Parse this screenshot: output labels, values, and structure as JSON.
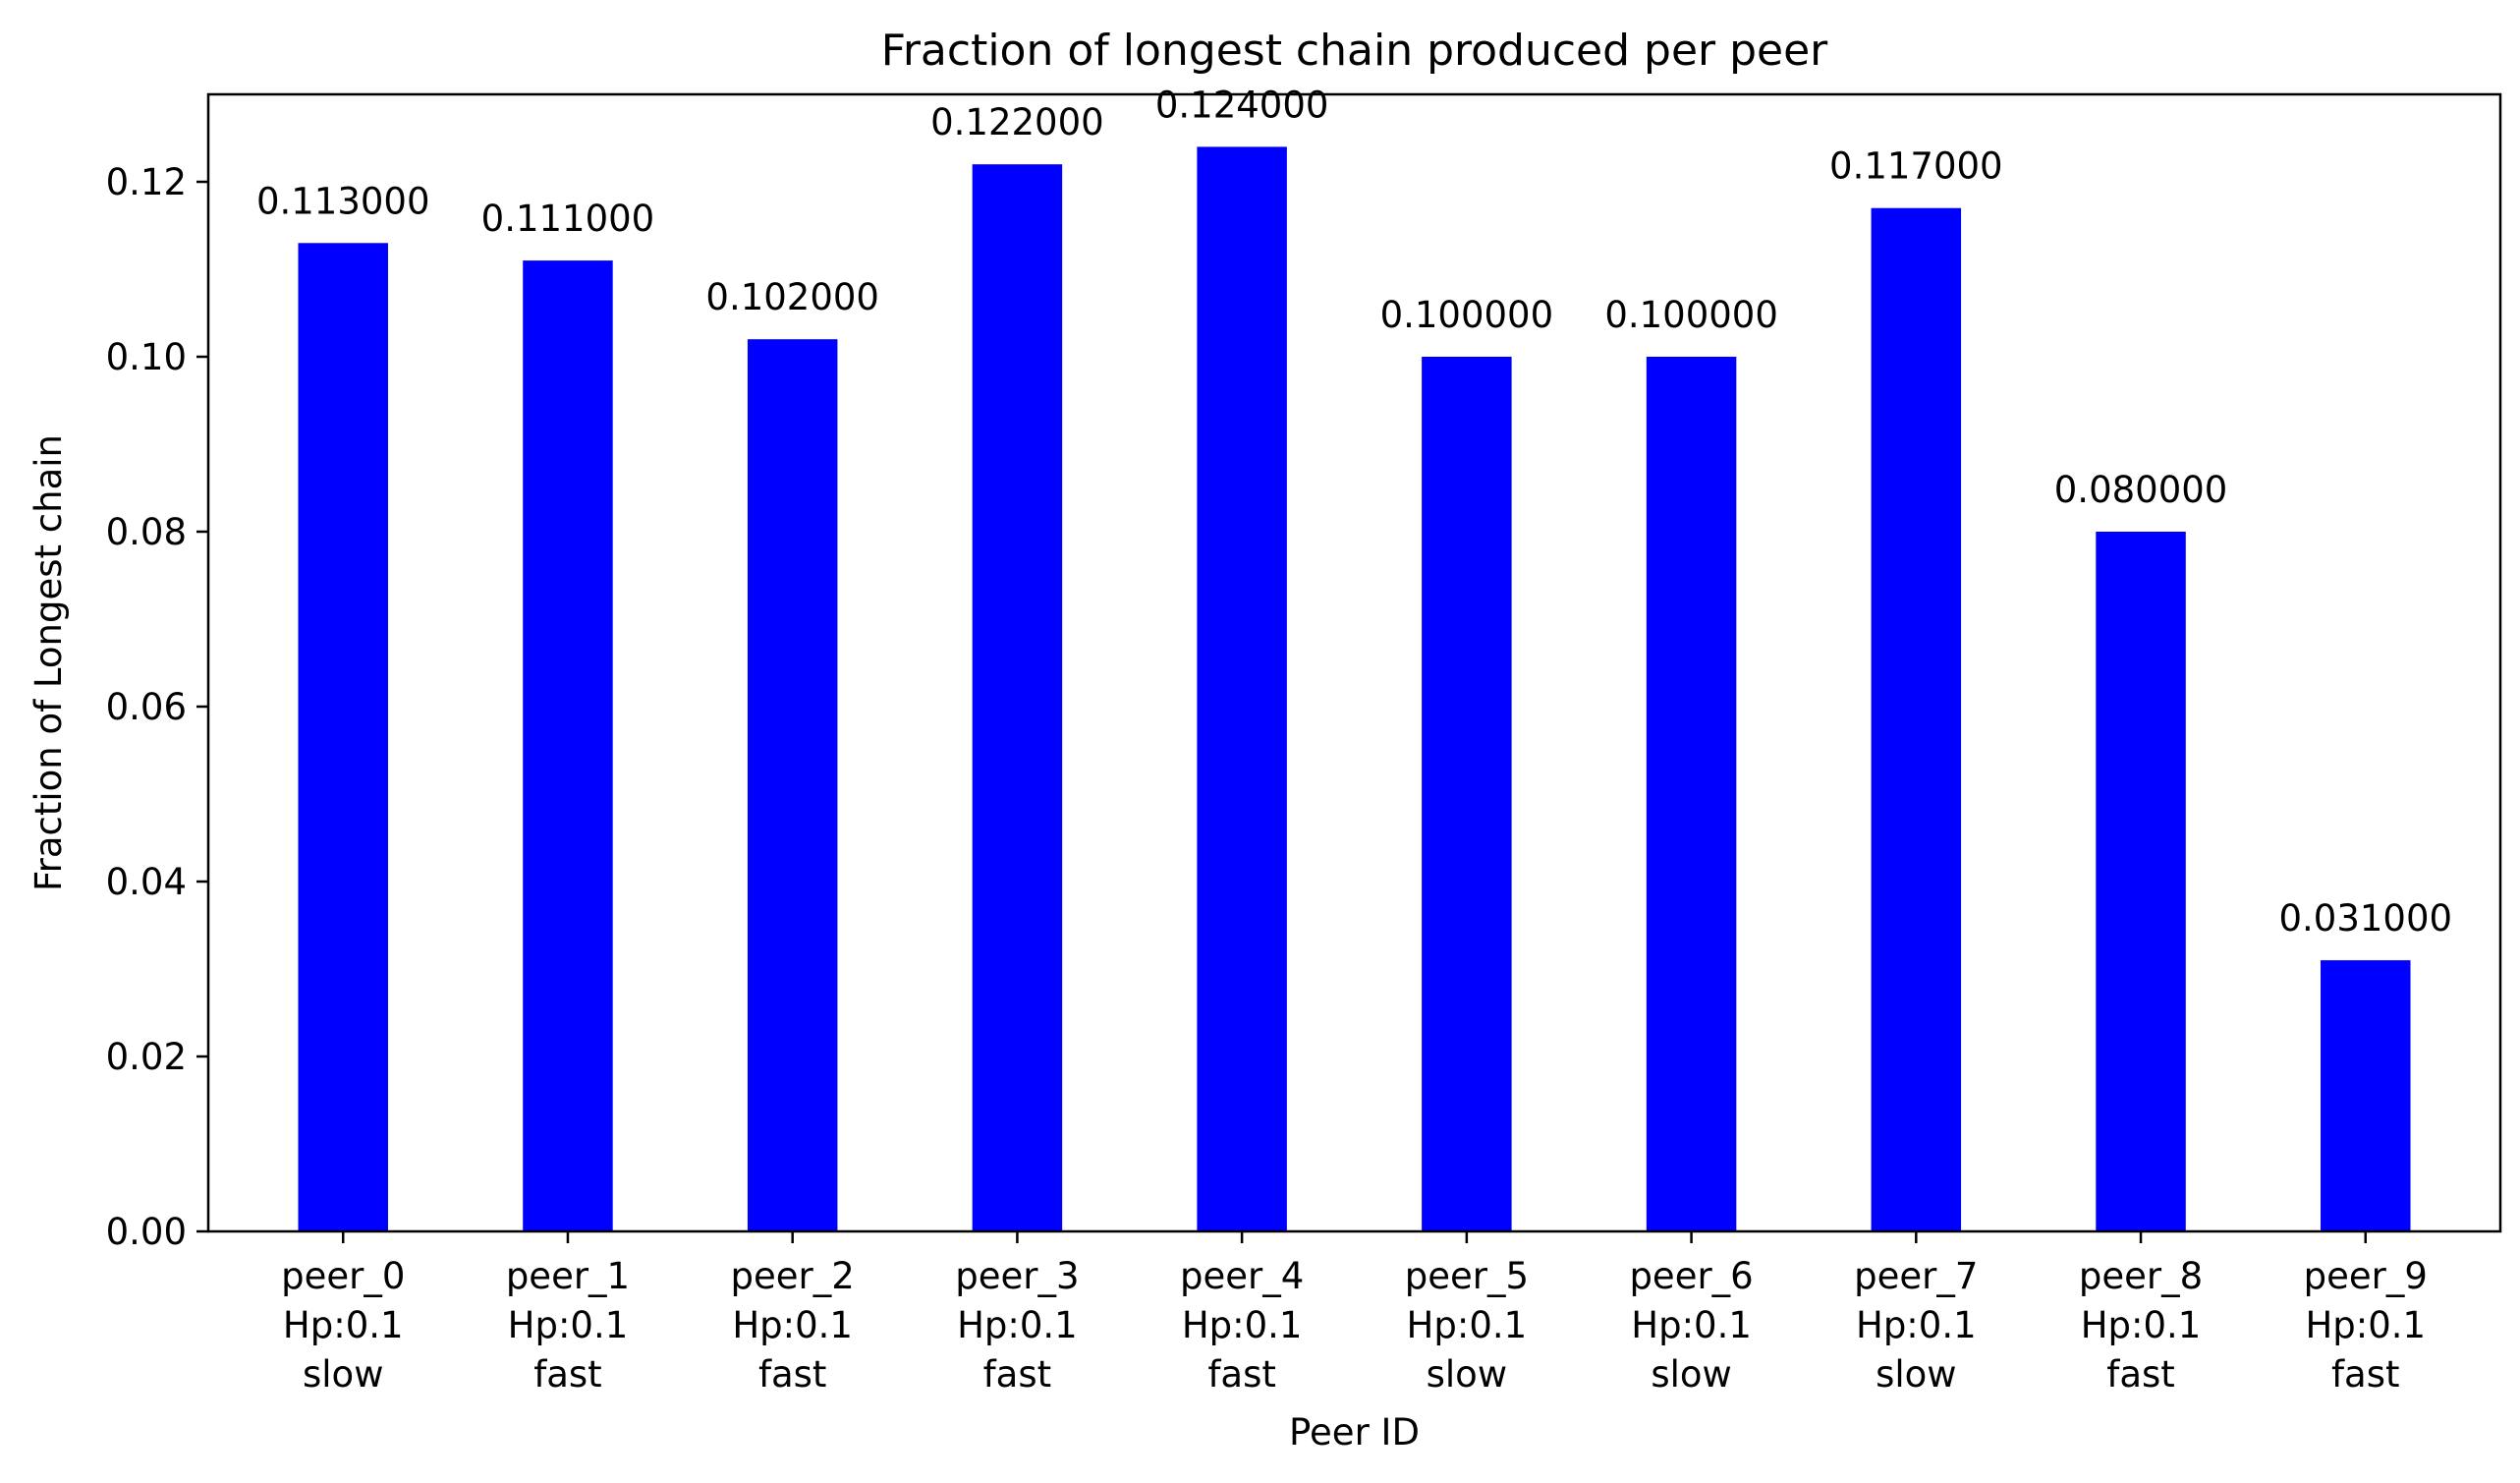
{
  "chart_data": {
    "type": "bar",
    "title": "Fraction of longest chain produced per peer",
    "xlabel": "Peer ID",
    "ylabel": "Fraction of Longest chain",
    "categories": [
      [
        "peer_0",
        "Hp:0.1",
        "slow"
      ],
      [
        "peer_1",
        "Hp:0.1",
        "fast"
      ],
      [
        "peer_2",
        "Hp:0.1",
        "fast"
      ],
      [
        "peer_3",
        "Hp:0.1",
        "fast"
      ],
      [
        "peer_4",
        "Hp:0.1",
        "fast"
      ],
      [
        "peer_5",
        "Hp:0.1",
        "slow"
      ],
      [
        "peer_6",
        "Hp:0.1",
        "slow"
      ],
      [
        "peer_7",
        "Hp:0.1",
        "slow"
      ],
      [
        "peer_8",
        "Hp:0.1",
        "fast"
      ],
      [
        "peer_9",
        "Hp:0.1",
        "fast"
      ]
    ],
    "values": [
      0.113,
      0.111,
      0.102,
      0.122,
      0.124,
      0.1,
      0.1,
      0.117,
      0.08,
      0.031
    ],
    "data_labels": [
      "0.113000",
      "0.111000",
      "0.102000",
      "0.122000",
      "0.124000",
      "0.100000",
      "0.100000",
      "0.117000",
      "0.080000",
      "0.031000"
    ],
    "ylim": [
      0,
      0.13
    ],
    "yticks": [
      0.0,
      0.02,
      0.04,
      0.06,
      0.08,
      0.1,
      0.12
    ],
    "ytick_labels": [
      "0.00",
      "0.02",
      "0.04",
      "0.06",
      "0.08",
      "0.10",
      "0.12"
    ],
    "bar_color": "#0000ff",
    "grid": false,
    "legend": "none"
  }
}
